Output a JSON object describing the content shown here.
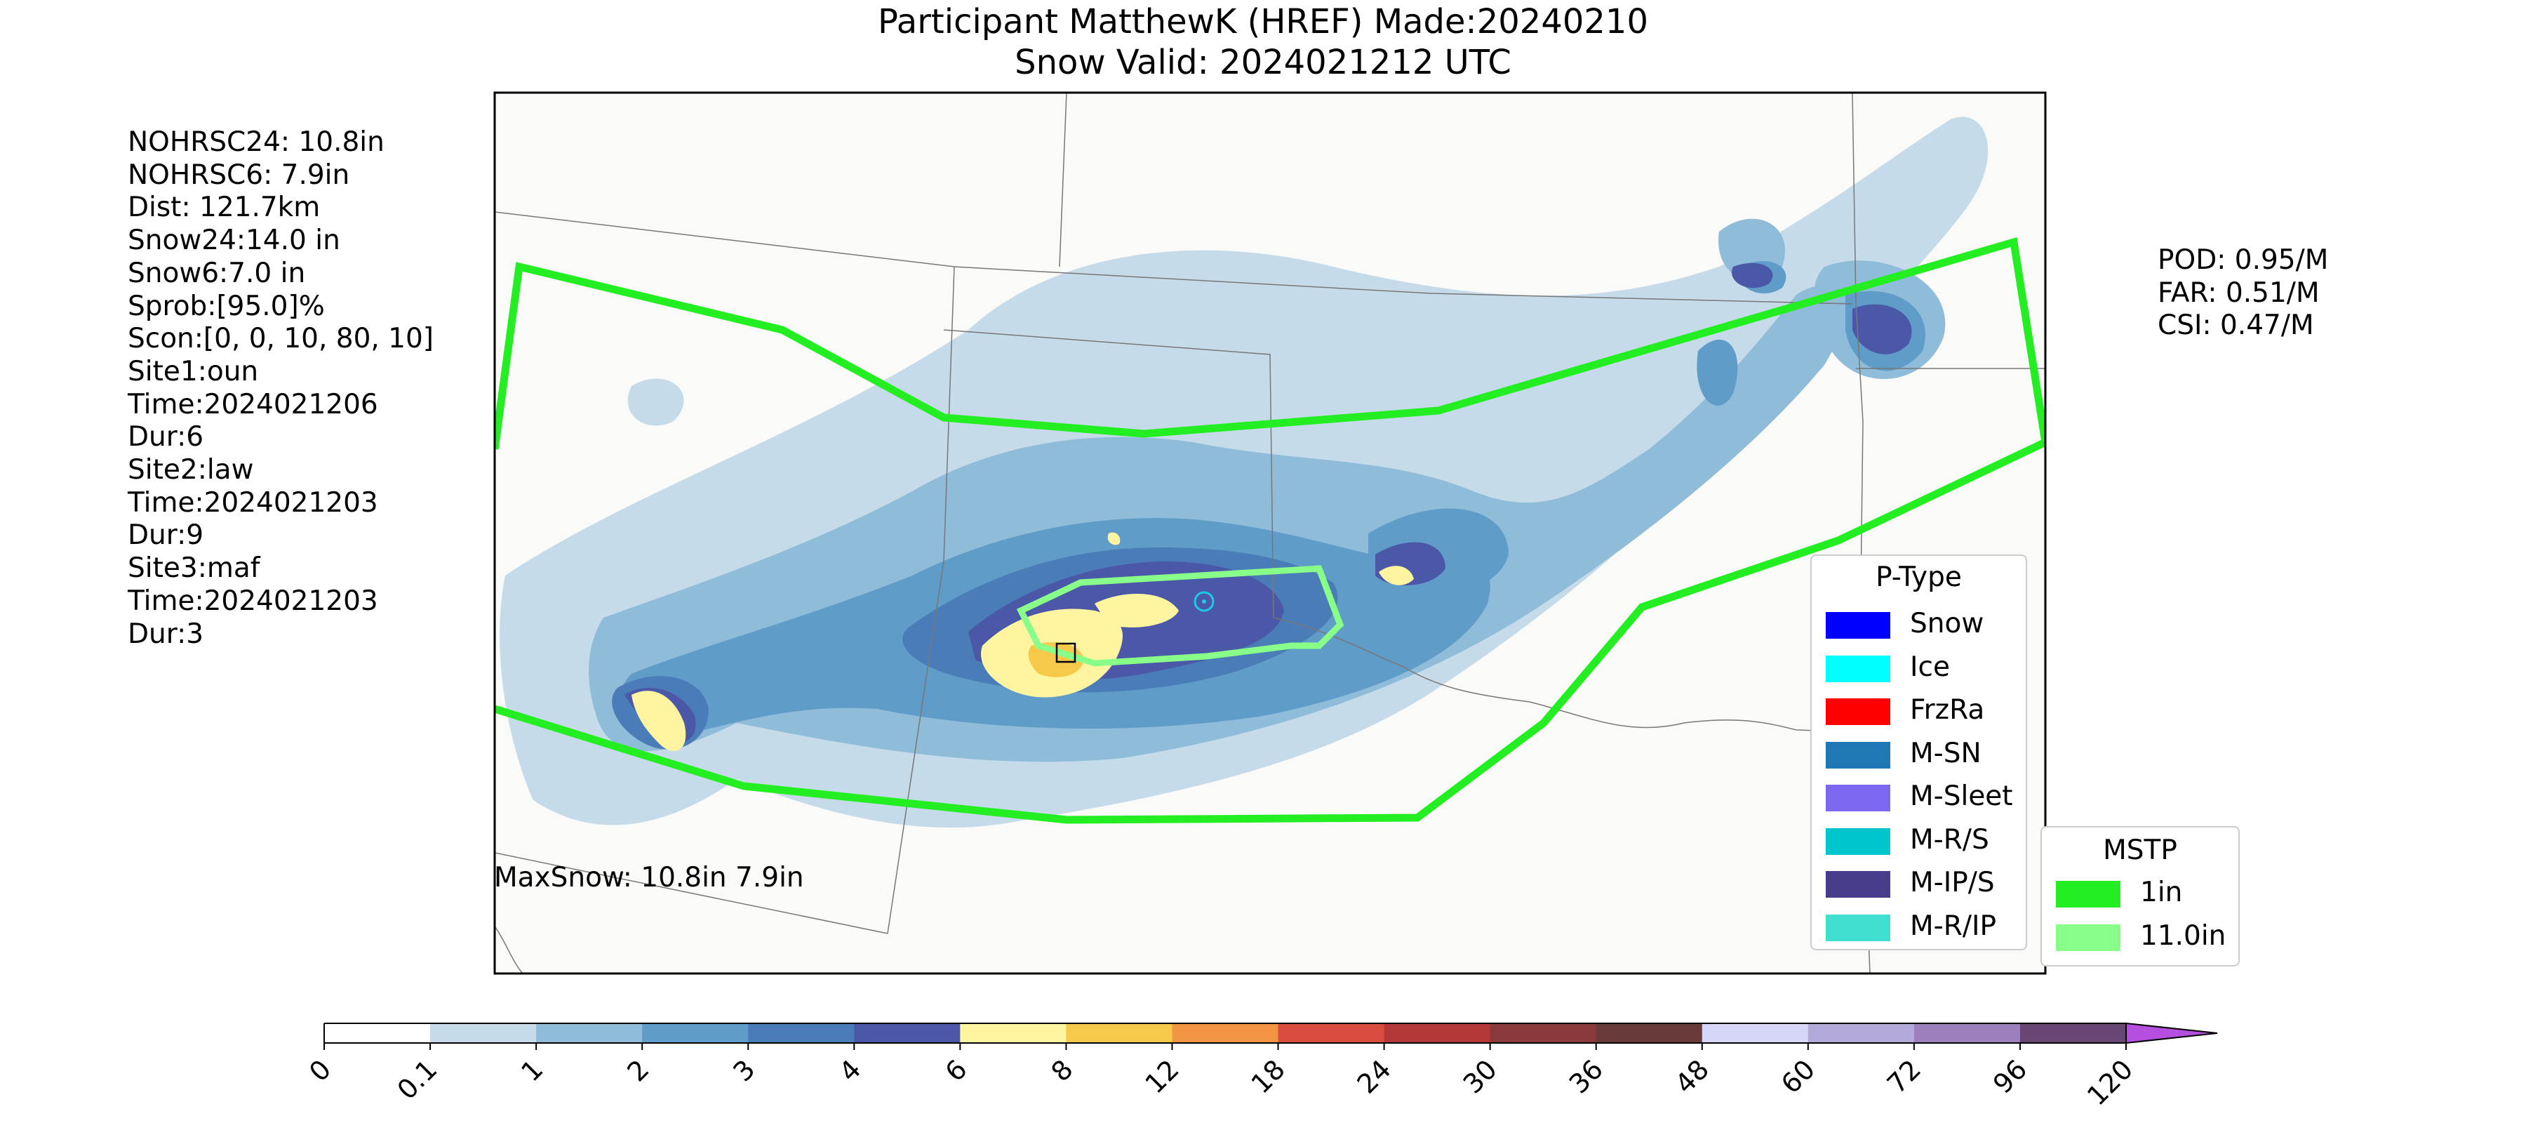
{
  "title": {
    "line1": "Participant MatthewK (HREF) Made:20240210",
    "line2": "Snow Valid: 2024021212 UTC"
  },
  "stats_left": [
    "NOHRSC24: 10.8in",
    "NOHRSC6: 7.9in",
    "Dist: 121.7km",
    "Snow24:14.0 in",
    "Snow6:7.0 in",
    "Sprob:[95.0]%",
    "Scon:[0, 0, 10, 80, 10]",
    "Site1:oun",
    "Time:2024021206",
    "Dur:6",
    "Site2:law",
    "Time:2024021203",
    "Dur:9",
    "Site3:maf",
    "Time:2024021203",
    "Dur:3"
  ],
  "stats_right": [
    "POD: 0.95/M",
    "FAR: 0.51/M",
    "CSI: 0.47/M"
  ],
  "maxsnow_label": "MaxSnow: 10.8in 7.9in",
  "ptype_legend": {
    "title": "P-Type",
    "items": [
      {
        "label": "Snow",
        "color": "#0000ff"
      },
      {
        "label": "Ice",
        "color": "#00ffff"
      },
      {
        "label": "FrzRa",
        "color": "#ff0000"
      },
      {
        "label": "M-SN",
        "color": "#1f78b4"
      },
      {
        "label": "M-Sleet",
        "color": "#7b68ee"
      },
      {
        "label": "M-R/S",
        "color": "#00c5cd"
      },
      {
        "label": "M-IP/S",
        "color": "#483d8b"
      },
      {
        "label": "M-R/IP",
        "color": "#40e0d0"
      }
    ]
  },
  "mstp_legend": {
    "title": "MSTP",
    "items": [
      {
        "label": "1in",
        "color": "#22ee22"
      },
      {
        "label": "11.0in",
        "color": "#88ff88"
      }
    ]
  },
  "colorbar": {
    "ticks": [
      "0",
      "0.1",
      "1",
      "2",
      "3",
      "4",
      "6",
      "8",
      "12",
      "18",
      "24",
      "30",
      "36",
      "48",
      "60",
      "72",
      "96",
      "120"
    ],
    "colors": [
      "#ffffff",
      "#c6dbe9",
      "#8fbcd8",
      "#5f9cc8",
      "#4a7db8",
      "#4b58a8",
      "#fff5a0",
      "#f6c94a",
      "#f39643",
      "#d94c40",
      "#b43838",
      "#8a3a3a",
      "#6a3a3a",
      "#d6d6f7",
      "#b4a9db",
      "#9c7fbd",
      "#6a4674"
    ],
    "extend_color": "#b44fe0"
  },
  "colors": {
    "contour_1in": "#22ee22",
    "contour_11in": "#88ff88"
  }
}
